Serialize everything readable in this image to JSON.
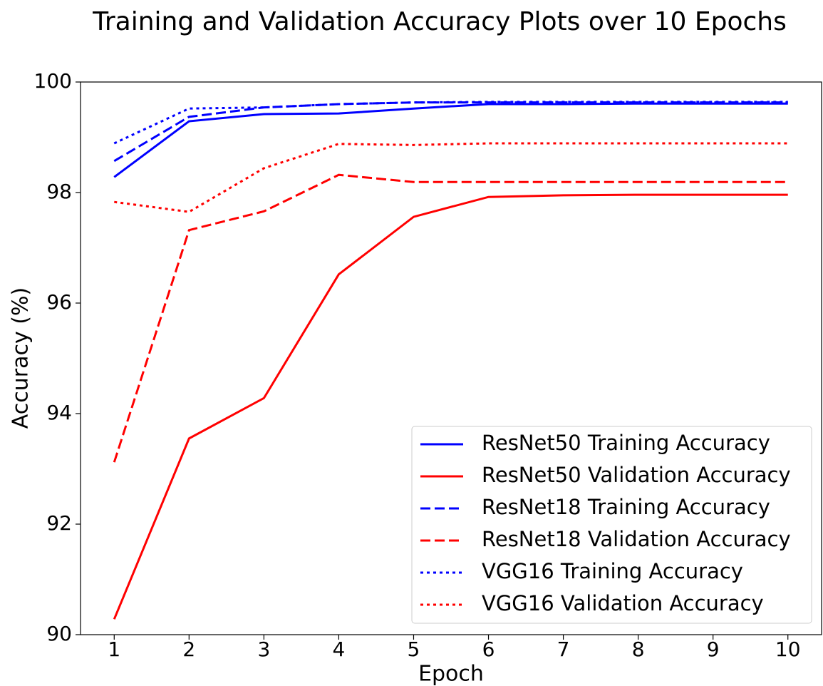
{
  "chart_data": {
    "type": "line",
    "title": "Training and Validation Accuracy Plots over 10 Epochs",
    "x_label": "Epoch",
    "y_label": "Accuracy (%)",
    "x": [
      1,
      2,
      3,
      4,
      5,
      6,
      7,
      8,
      9,
      10
    ],
    "xlim": [
      0.55,
      10.45
    ],
    "xticks": [
      1,
      2,
      3,
      4,
      5,
      6,
      7,
      8,
      9,
      10
    ],
    "ylim": [
      90,
      100
    ],
    "yticks": [
      90,
      92,
      94,
      96,
      98,
      100
    ],
    "legend": "lower right",
    "series": [
      {
        "name": "ResNet50 Training Accuracy",
        "color": "#0000ff",
        "linestyle": "solid",
        "values": [
          98.28,
          99.29,
          99.42,
          99.43,
          99.52,
          99.6,
          99.6,
          99.61,
          99.61,
          99.61
        ]
      },
      {
        "name": "ResNet50 Validation Accuracy",
        "color": "#ff0000",
        "linestyle": "solid",
        "values": [
          90.28,
          93.55,
          94.28,
          96.52,
          97.56,
          97.92,
          97.95,
          97.96,
          97.96,
          97.96
        ]
      },
      {
        "name": "ResNet18 Training Accuracy",
        "color": "#0000ff",
        "linestyle": "dashed",
        "values": [
          98.57,
          99.37,
          99.54,
          99.6,
          99.63,
          99.63,
          99.63,
          99.63,
          99.63,
          99.63
        ]
      },
      {
        "name": "ResNet18 Validation Accuracy",
        "color": "#ff0000",
        "linestyle": "dashed",
        "values": [
          93.12,
          97.32,
          97.66,
          98.32,
          98.19,
          98.19,
          98.19,
          98.19,
          98.19,
          98.19
        ]
      },
      {
        "name": "VGG16 Training Accuracy",
        "color": "#0000ff",
        "linestyle": "dotted",
        "values": [
          98.89,
          99.52,
          99.54,
          99.6,
          99.63,
          99.64,
          99.64,
          99.64,
          99.64,
          99.64
        ]
      },
      {
        "name": "VGG16 Validation Accuracy",
        "color": "#ff0000",
        "linestyle": "dotted",
        "values": [
          97.83,
          97.65,
          98.44,
          98.88,
          98.86,
          98.89,
          98.89,
          98.89,
          98.89,
          98.89
        ]
      }
    ]
  }
}
